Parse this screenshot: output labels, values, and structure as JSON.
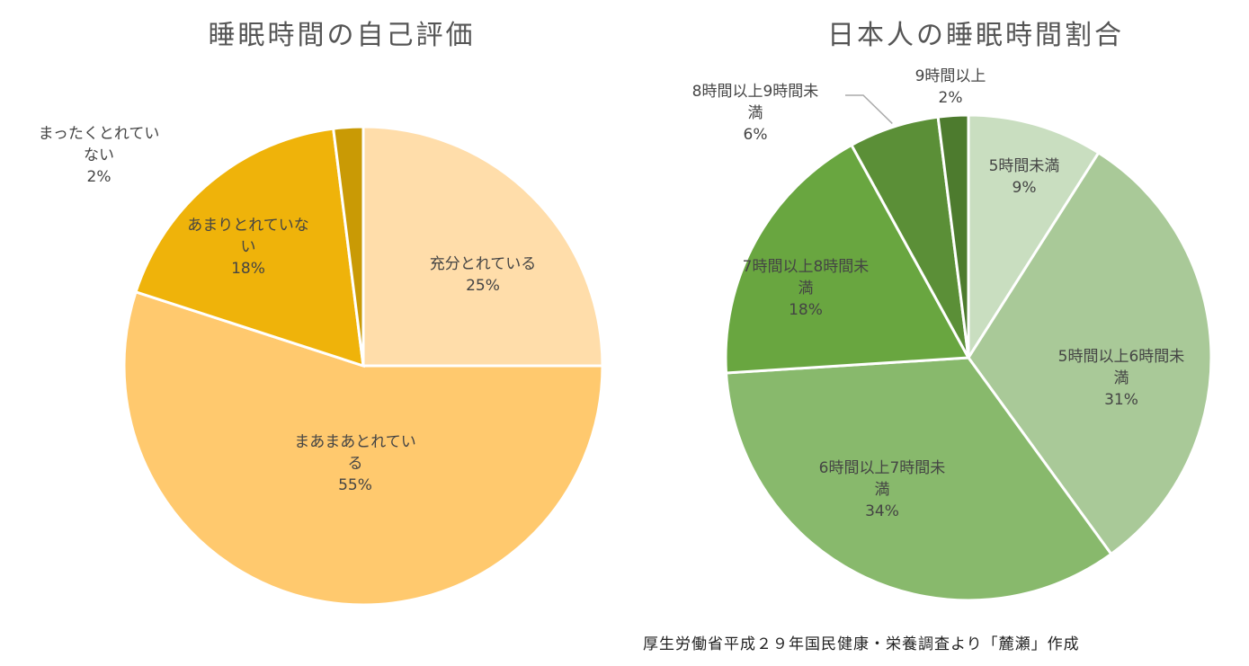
{
  "chart_data": [
    {
      "type": "pie",
      "title": "睡眠時間の自己評価",
      "slices": [
        {
          "label": "充分とれている",
          "value": 25,
          "value_label": "25%",
          "color": "#FFDDAA"
        },
        {
          "label": "まあまあとれている",
          "value": 55,
          "value_label": "55%",
          "color": "#FFC96E"
        },
        {
          "label": "あまりとれていない",
          "value": 18,
          "value_label": "18%",
          "color": "#EFB30A"
        },
        {
          "label": "まったくとれていない",
          "value": 2,
          "value_label": "2%",
          "color": "#C99A05"
        }
      ]
    },
    {
      "type": "pie",
      "title": "日本人の睡眠時間割合",
      "slices": [
        {
          "label": "5時間未満",
          "value": 9,
          "value_label": "9%",
          "color": "#C9DEC0"
        },
        {
          "label": "5時間以上6時間未満",
          "value": 31,
          "value_label": "31%",
          "color": "#A9C998"
        },
        {
          "label": "6時間以上7時間未満",
          "value": 34,
          "value_label": "34%",
          "color": "#88B96C"
        },
        {
          "label": "7時間以上8時間未満",
          "value": 18,
          "value_label": "18%",
          "color": "#69A640"
        },
        {
          "label": "8時間以上9時間未満",
          "value": 6,
          "value_label": "6%",
          "color": "#5B8F37"
        },
        {
          "label": "9時間以上",
          "value": 2,
          "value_label": "2%",
          "color": "#4D7B2E"
        }
      ]
    }
  ],
  "source_note": "厚生労働省平成２９年国民健康・栄養調査より「麓瀬」作成"
}
